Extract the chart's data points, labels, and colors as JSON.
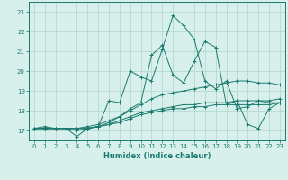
{
  "xlabel": "Humidex (Indice chaleur)",
  "x_values": [
    0,
    1,
    2,
    3,
    4,
    5,
    6,
    7,
    8,
    9,
    10,
    11,
    12,
    13,
    14,
    15,
    16,
    17,
    18,
    19,
    20,
    21,
    22,
    23
  ],
  "series": [
    [
      17.1,
      17.2,
      17.1,
      17.1,
      16.7,
      17.1,
      17.2,
      18.5,
      18.4,
      20.0,
      19.7,
      19.5,
      21.1,
      22.8,
      22.3,
      21.6,
      19.5,
      19.1,
      19.5,
      18.1,
      18.2,
      18.5,
      18.5,
      18.6
    ],
    [
      17.1,
      17.1,
      17.1,
      17.1,
      17.1,
      17.2,
      17.3,
      17.5,
      17.7,
      18.1,
      18.4,
      20.8,
      21.3,
      19.8,
      19.4,
      20.5,
      21.5,
      21.2,
      18.3,
      18.5,
      17.3,
      17.1,
      18.1,
      18.4
    ],
    [
      17.1,
      17.1,
      17.1,
      17.1,
      17.0,
      17.1,
      17.2,
      17.4,
      17.7,
      18.0,
      18.3,
      18.6,
      18.8,
      18.9,
      19.0,
      19.1,
      19.2,
      19.3,
      19.4,
      19.5,
      19.5,
      19.4,
      19.4,
      19.3
    ],
    [
      17.1,
      17.1,
      17.1,
      17.1,
      17.1,
      17.1,
      17.2,
      17.3,
      17.5,
      17.7,
      17.9,
      18.0,
      18.1,
      18.2,
      18.3,
      18.3,
      18.4,
      18.4,
      18.4,
      18.5,
      18.5,
      18.5,
      18.4,
      18.4
    ],
    [
      17.1,
      17.1,
      17.1,
      17.1,
      17.1,
      17.1,
      17.2,
      17.3,
      17.4,
      17.6,
      17.8,
      17.9,
      18.0,
      18.1,
      18.1,
      18.2,
      18.2,
      18.3,
      18.3,
      18.3,
      18.3,
      18.3,
      18.3,
      18.4
    ]
  ],
  "line_color": "#1a7a6e",
  "marker_color": "#1a7a6e",
  "bg_color": "#d8f0eb",
  "grid_color": "#aed4cc",
  "axis_color": "#1a7a6e",
  "ylim": [
    16.5,
    23.5
  ],
  "yticks": [
    17,
    18,
    19,
    20,
    21,
    22,
    23
  ],
  "xticks": [
    0,
    1,
    2,
    3,
    4,
    5,
    6,
    7,
    8,
    9,
    10,
    11,
    12,
    13,
    14,
    15,
    16,
    17,
    18,
    19,
    20,
    21,
    22,
    23
  ]
}
